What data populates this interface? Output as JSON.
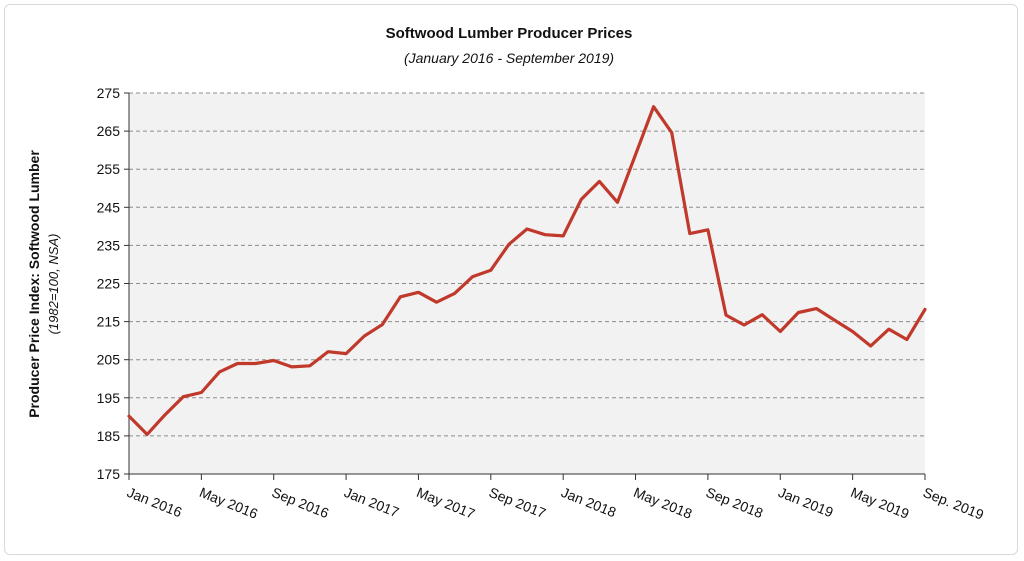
{
  "chart_data": {
    "type": "line",
    "title": "Softwood Lumber Producer Prices",
    "subtitle": "(January 2016 - September 2019)",
    "ylabel": "Producer Price Index: Softwood Lumber",
    "ylabel_sub": "(1982=100, NSA)",
    "xlabel": "",
    "ylim": [
      175,
      275
    ],
    "yticks": [
      175,
      185,
      195,
      205,
      215,
      225,
      235,
      245,
      255,
      265,
      275
    ],
    "grid": true,
    "legend": "none",
    "line_color": "#c0392b",
    "plot_background": "#f2f2f2",
    "x": [
      "Jan 2016",
      "Feb 2016",
      "Mar 2016",
      "Apr 2016",
      "May 2016",
      "Jun 2016",
      "Jul 2016",
      "Aug 2016",
      "Sep 2016",
      "Oct 2016",
      "Nov 2016",
      "Dec 2016",
      "Jan 2017",
      "Feb 2017",
      "Mar 2017",
      "Apr 2017",
      "May 2017",
      "Jun 2017",
      "Jul 2017",
      "Aug 2017",
      "Sep 2017",
      "Oct 2017",
      "Nov 2017",
      "Dec 2017",
      "Jan 2018",
      "Feb 2018",
      "Mar 2018",
      "Apr 2018",
      "May 2018",
      "Jun 2018",
      "Jul 2018",
      "Aug 2018",
      "Sep 2018",
      "Oct 2018",
      "Nov 2018",
      "Dec 2018",
      "Jan 2019",
      "Feb 2019",
      "Mar 2019",
      "Apr 2019",
      "May 2019",
      "Jun 2019",
      "Jul 2019",
      "Aug 2019",
      "Sep 2019"
    ],
    "values": [
      190.2,
      185.4,
      190.6,
      195.3,
      196.4,
      201.8,
      204.0,
      204.0,
      204.8,
      203.1,
      203.4,
      207.1,
      206.6,
      211.2,
      214.2,
      221.5,
      222.7,
      220.1,
      222.4,
      226.8,
      228.5,
      235.3,
      239.3,
      237.8,
      237.5,
      247.1,
      251.8,
      246.3,
      258.8,
      271.4,
      264.6,
      238.1,
      239.1,
      216.7,
      214.1,
      216.8,
      212.4,
      217.4,
      218.4,
      215.4,
      212.4,
      208.6,
      213.0,
      210.3,
      218.2
    ],
    "x_tick_labels": [
      {
        "index": 0,
        "label": "Jan 2016"
      },
      {
        "index": 4,
        "label": "May 2016"
      },
      {
        "index": 8,
        "label": "Sep 2016"
      },
      {
        "index": 12,
        "label": "Jan 2017"
      },
      {
        "index": 16,
        "label": "May 2017"
      },
      {
        "index": 20,
        "label": "Sep 2017"
      },
      {
        "index": 24,
        "label": "Jan 2018"
      },
      {
        "index": 28,
        "label": "May 2018"
      },
      {
        "index": 32,
        "label": "Sep 2018"
      },
      {
        "index": 36,
        "label": "Jan 2019"
      },
      {
        "index": 40,
        "label": "May 2019"
      },
      {
        "index": 44,
        "label": "Sep. 2019"
      }
    ]
  }
}
